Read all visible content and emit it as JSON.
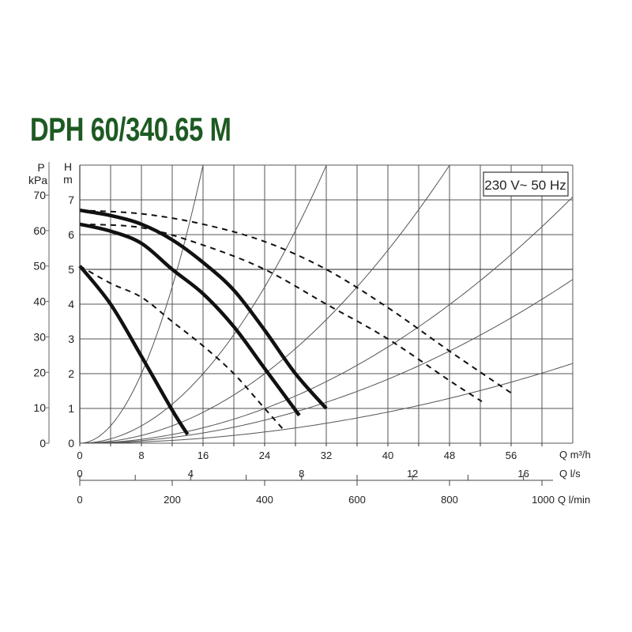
{
  "chart_data": {
    "type": "line",
    "title": "DPH 60/340.65 M",
    "annotation": "230 V~ 50 Hz",
    "grid": true,
    "x": {
      "label": "Q m³/h",
      "range": [
        0,
        64
      ],
      "ticks": [
        0,
        8,
        16,
        24,
        32,
        40,
        48,
        56
      ]
    },
    "x2": {
      "label": "Q l/s",
      "ticks": [
        0,
        4,
        8,
        12,
        16
      ]
    },
    "x3": {
      "label": "Q l/min",
      "ticks": [
        0,
        200,
        400,
        600,
        800,
        1000
      ]
    },
    "y": {
      "label_top": "H",
      "label_unit": "m",
      "range": [
        0,
        8
      ],
      "ticks": [
        0,
        1,
        2,
        3,
        4,
        5,
        6,
        7
      ]
    },
    "y2": {
      "label_top": "P",
      "label_unit": "kPa",
      "ticks": [
        0,
        10,
        20,
        30,
        40,
        50,
        60,
        70
      ]
    },
    "series": [
      {
        "style": "solid-bold",
        "points": [
          [
            0,
            6.7
          ],
          [
            4,
            6.55
          ],
          [
            8,
            6.3
          ],
          [
            12,
            5.85
          ],
          [
            16,
            5.2
          ],
          [
            20,
            4.4
          ],
          [
            24,
            3.25
          ],
          [
            28,
            2.0
          ],
          [
            32,
            1.0
          ]
        ]
      },
      {
        "style": "solid-bold",
        "points": [
          [
            0,
            6.3
          ],
          [
            4,
            6.1
          ],
          [
            8,
            5.75
          ],
          [
            12,
            5.0
          ],
          [
            16,
            4.3
          ],
          [
            20,
            3.35
          ],
          [
            24,
            2.15
          ],
          [
            28.5,
            0.8
          ]
        ]
      },
      {
        "style": "solid-bold",
        "points": [
          [
            0,
            5.1
          ],
          [
            4,
            4.0
          ],
          [
            8,
            2.5
          ],
          [
            12,
            0.95
          ],
          [
            14,
            0.25
          ]
        ]
      },
      {
        "style": "dashed",
        "points": [
          [
            0,
            6.7
          ],
          [
            8,
            6.6
          ],
          [
            16,
            6.3
          ],
          [
            24,
            5.8
          ],
          [
            32,
            5.0
          ],
          [
            40,
            3.9
          ],
          [
            48,
            2.65
          ],
          [
            56.3,
            1.4
          ]
        ]
      },
      {
        "style": "dashed",
        "points": [
          [
            0,
            6.3
          ],
          [
            8,
            6.2
          ],
          [
            16,
            5.7
          ],
          [
            24,
            5.0
          ],
          [
            32,
            4.0
          ],
          [
            40,
            3.0
          ],
          [
            48,
            1.8
          ],
          [
            52.2,
            1.2
          ]
        ]
      },
      {
        "style": "dashed",
        "points": [
          [
            0,
            5.1
          ],
          [
            4,
            4.6
          ],
          [
            8,
            4.2
          ],
          [
            12,
            3.5
          ],
          [
            16,
            2.8
          ],
          [
            20,
            2.0
          ],
          [
            24,
            1.0
          ],
          [
            26.4,
            0.4
          ]
        ]
      }
    ],
    "system_curves_k": [
      0.03125,
      0.0078,
      0.00347,
      0.00173,
      0.00115,
      0.00056
    ]
  }
}
